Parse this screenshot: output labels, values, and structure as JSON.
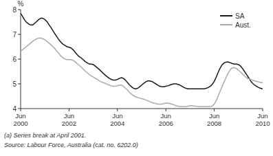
{
  "chart_data": {
    "type": "line",
    "ylabel": "%",
    "annotations": [
      "(a) Series break at April 2001.",
      "Source: Labour Force, Australia (cat. no. 6202.0)"
    ],
    "categories": [
      "Jun\n2000",
      null,
      null,
      null,
      null,
      null,
      null,
      null,
      null,
      null,
      null,
      null,
      null,
      null,
      null,
      null,
      null,
      null,
      null,
      null,
      null,
      null,
      null,
      null,
      "Jun\n2002",
      null,
      null,
      null,
      null,
      null,
      null,
      null,
      null,
      null,
      null,
      null,
      null,
      null,
      null,
      null,
      null,
      null,
      null,
      null,
      null,
      null,
      null,
      null,
      "Jun\n2004",
      null,
      null,
      null,
      null,
      null,
      null,
      null,
      null,
      null,
      null,
      null,
      null,
      null,
      null,
      null,
      null,
      null,
      null,
      null,
      null,
      null,
      null,
      null,
      "Jun\n2006",
      null,
      null,
      null,
      null,
      null,
      null,
      null,
      null,
      null,
      null,
      null,
      null,
      null,
      null,
      null,
      null,
      null,
      null,
      null,
      null,
      null,
      null,
      null,
      "Jun\n2008",
      null,
      null,
      null,
      null,
      null,
      null,
      null,
      null,
      null,
      null,
      null,
      null,
      null,
      null,
      null,
      null,
      null,
      null,
      null,
      null,
      null,
      null,
      null,
      "Jun\n2010"
    ],
    "series": [
      {
        "name": "SA",
        "color": "#1a1a1a",
        "values": [
          7.85,
          7.72,
          7.58,
          7.48,
          7.42,
          7.38,
          7.38,
          7.45,
          7.52,
          7.6,
          7.65,
          7.65,
          7.6,
          7.52,
          7.4,
          7.28,
          7.15,
          7.02,
          6.9,
          6.78,
          6.68,
          6.6,
          6.55,
          6.5,
          6.48,
          6.45,
          6.38,
          6.28,
          6.18,
          6.1,
          6.05,
          5.98,
          5.9,
          5.85,
          5.8,
          5.8,
          5.78,
          5.72,
          5.65,
          5.58,
          5.5,
          5.42,
          5.35,
          5.28,
          5.22,
          5.18,
          5.15,
          5.15,
          5.18,
          5.22,
          5.25,
          5.22,
          5.15,
          5.05,
          4.95,
          4.88,
          4.82,
          4.8,
          4.82,
          4.88,
          4.95,
          5.02,
          5.08,
          5.12,
          5.12,
          5.1,
          5.05,
          5.0,
          4.95,
          4.9,
          4.88,
          4.88,
          4.9,
          4.92,
          4.95,
          4.98,
          5.0,
          5.0,
          4.98,
          4.95,
          4.9,
          4.85,
          4.82,
          4.8,
          4.8,
          4.8,
          4.8,
          4.8,
          4.8,
          4.8,
          4.8,
          4.8,
          4.82,
          4.85,
          4.9,
          4.98,
          5.1,
          5.28,
          5.48,
          5.65,
          5.78,
          5.85,
          5.88,
          5.88,
          5.85,
          5.82,
          5.8,
          5.8,
          5.78,
          5.72,
          5.62,
          5.5,
          5.38,
          5.25,
          5.12,
          5.02,
          4.95,
          4.9,
          4.85,
          4.82,
          4.8
        ]
      },
      {
        "name": "Aust.",
        "color": "#aaaaaa",
        "values": [
          6.32,
          6.38,
          6.45,
          6.52,
          6.58,
          6.65,
          6.72,
          6.78,
          6.82,
          6.85,
          6.85,
          6.82,
          6.78,
          6.72,
          6.65,
          6.58,
          6.5,
          6.42,
          6.32,
          6.22,
          6.12,
          6.05,
          6.0,
          5.98,
          5.98,
          5.98,
          5.95,
          5.9,
          5.82,
          5.75,
          5.68,
          5.6,
          5.52,
          5.45,
          5.38,
          5.32,
          5.28,
          5.22,
          5.18,
          5.12,
          5.08,
          5.05,
          5.02,
          4.98,
          4.95,
          4.92,
          4.9,
          4.9,
          4.92,
          4.95,
          4.95,
          4.9,
          4.82,
          4.75,
          4.65,
          4.58,
          4.52,
          4.48,
          4.45,
          4.42,
          4.4,
          4.38,
          4.35,
          4.32,
          4.28,
          4.25,
          4.22,
          4.2,
          4.18,
          4.18,
          4.18,
          4.2,
          4.22,
          4.22,
          4.2,
          4.18,
          4.15,
          4.12,
          4.1,
          4.08,
          4.08,
          4.08,
          4.08,
          4.1,
          4.12,
          4.12,
          4.1,
          4.1,
          4.08,
          4.08,
          4.08,
          4.08,
          4.08,
          4.08,
          4.08,
          4.1,
          4.18,
          4.32,
          4.52,
          4.72,
          4.92,
          5.1,
          5.28,
          5.45,
          5.58,
          5.65,
          5.65,
          5.62,
          5.55,
          5.48,
          5.4,
          5.32,
          5.25,
          5.2,
          5.18,
          5.15,
          5.12,
          5.1,
          5.08,
          5.05,
          5.05
        ]
      }
    ],
    "ylim": [
      4,
      8
    ],
    "yticks": [
      4,
      5,
      6,
      7,
      8
    ],
    "grid": false,
    "legend": "upper right"
  }
}
